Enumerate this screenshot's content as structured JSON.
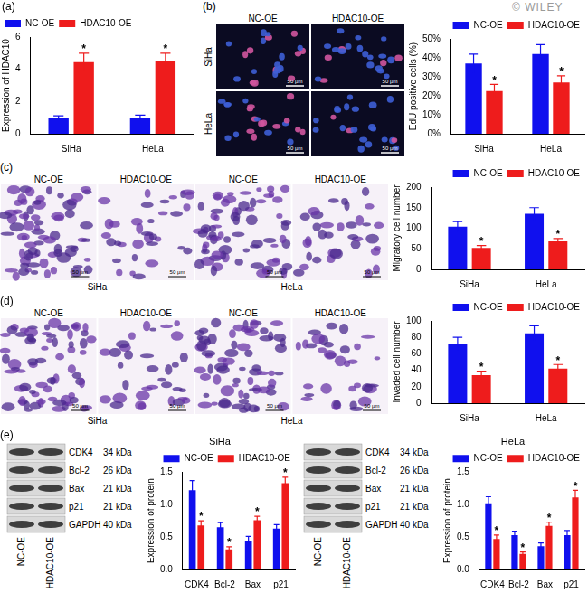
{
  "figure": {
    "watermark": "© WILEY"
  },
  "chart_data": [
    {
      "panel": "(a)",
      "type": "bar",
      "y_label": "Expression of HDAC10",
      "categories": [
        "SiHa",
        "HeLa"
      ],
      "series": [
        {
          "name": "NC-OE",
          "color": "#1010ee",
          "values": [
            1.0,
            1.0
          ],
          "errors": [
            0.12,
            0.16
          ]
        },
        {
          "name": "HDAC10-OE",
          "color": "#ee1c1c",
          "values": [
            4.45,
            4.5
          ],
          "errors": [
            0.55,
            0.5
          ],
          "significance": [
            "*",
            "*"
          ]
        }
      ],
      "ylim": [
        0,
        6
      ],
      "yticks": [
        0,
        2,
        4,
        6
      ],
      "grid": false,
      "legend": "top-left"
    },
    {
      "type": "bar",
      "y_label": "EdU positive cells (%)",
      "categories": [
        "SiHa",
        "HeLa"
      ],
      "series": [
        {
          "name": "NC-OE",
          "color": "#1010ee",
          "values": [
            37,
            42
          ],
          "errors": [
            5,
            5
          ]
        },
        {
          "name": "HDAC10-OE",
          "color": "#ee1c1c",
          "values": [
            22.5,
            27
          ],
          "errors": [
            3.5,
            3.5
          ],
          "significance": [
            "*",
            "*"
          ]
        }
      ],
      "ylim": [
        0,
        50
      ],
      "yticks": [
        {
          "value": 0,
          "label": "0%"
        },
        {
          "value": 10,
          "label": "10%"
        },
        {
          "value": 20,
          "label": "20%"
        },
        {
          "value": 30,
          "label": "30%"
        },
        {
          "value": 40,
          "label": "40%"
        },
        {
          "value": 50,
          "label": "50%"
        }
      ],
      "grid": false,
      "legend": "top-right"
    },
    {
      "type": "bar",
      "y_label": "Migratory cell number",
      "categories": [
        "SiHa",
        "HeLa"
      ],
      "series": [
        {
          "name": "NC-OE",
          "color": "#1010ee",
          "values": [
            104,
            135
          ],
          "errors": [
            12,
            15
          ]
        },
        {
          "name": "HDAC10-OE",
          "color": "#ee1c1c",
          "values": [
            52,
            68
          ],
          "errors": [
            6,
            7
          ],
          "significance": [
            "*",
            "*"
          ]
        }
      ],
      "ylim": [
        0,
        200
      ],
      "yticks": [
        0,
        50,
        100,
        150,
        200
      ],
      "grid": false,
      "legend": "top-right"
    },
    {
      "type": "bar",
      "y_label": "Invaded cell number",
      "categories": [
        "SiHa",
        "HeLa"
      ],
      "series": [
        {
          "name": "NC-OE",
          "color": "#1010ee",
          "values": [
            72,
            85
          ],
          "errors": [
            8,
            9
          ]
        },
        {
          "name": "HDAC10-OE",
          "color": "#ee1c1c",
          "values": [
            34,
            42
          ],
          "errors": [
            5,
            5
          ],
          "significance": [
            "*",
            "*"
          ]
        }
      ],
      "ylim": [
        0,
        100
      ],
      "yticks": [
        0,
        20,
        40,
        60,
        80,
        100
      ],
      "grid": false,
      "legend": "top-right"
    },
    {
      "type": "bar",
      "title": "SiHa",
      "y_label": "Expression of protein",
      "categories": [
        "CDK4",
        "Bcl-2",
        "Bax",
        "p21"
      ],
      "series": [
        {
          "name": "NC-OE",
          "color": "#1010ee",
          "values": [
            1.22,
            0.65,
            0.43,
            0.63
          ],
          "errors": [
            0.15,
            0.07,
            0.08,
            0.06
          ]
        },
        {
          "name": "HDAC10-OE",
          "color": "#ee1c1c",
          "values": [
            0.68,
            0.31,
            0.76,
            1.33
          ],
          "errors": [
            0.07,
            0.04,
            0.06,
            0.09
          ],
          "significance": [
            "*",
            "*",
            "*",
            "*"
          ]
        }
      ],
      "ylim": [
        0,
        1.5
      ],
      "yticks": [
        {
          "value": 0,
          "label": "0.0"
        },
        {
          "value": 0.5,
          "label": "0.5"
        },
        {
          "value": 1,
          "label": "1.0"
        },
        {
          "value": 1.5,
          "label": "1.5"
        }
      ],
      "grid": false,
      "legend": "top-right"
    },
    {
      "type": "bar",
      "title": "HeLa",
      "y_label": "Expression of protein",
      "categories": [
        "CDK4",
        "Bcl-2",
        "Bax",
        "p21"
      ],
      "series": [
        {
          "name": "NC-OE",
          "color": "#1010ee",
          "values": [
            1.02,
            0.53,
            0.36,
            0.53
          ],
          "errors": [
            0.1,
            0.06,
            0.05,
            0.07
          ]
        },
        {
          "name": "HDAC10-OE",
          "color": "#ee1c1c",
          "values": [
            0.47,
            0.24,
            0.67,
            1.11
          ],
          "errors": [
            0.06,
            0.03,
            0.06,
            0.11
          ],
          "significance": [
            "*",
            "*",
            "*",
            "*"
          ]
        }
      ],
      "ylim": [
        0,
        1.5
      ],
      "yticks": [
        {
          "value": 0,
          "label": "0.0"
        },
        {
          "value": 0.5,
          "label": "0.5"
        },
        {
          "value": 1,
          "label": "1.0"
        },
        {
          "value": 1.5,
          "label": "1.5"
        }
      ],
      "grid": false,
      "legend": "top-right"
    }
  ],
  "image_panels": [
    {
      "panel": "(b)",
      "columns": [
        "NC-OE",
        "HDAC10-OE"
      ],
      "rows": [
        "SiHa",
        "HeLa"
      ],
      "scale_bar": "50 μm"
    },
    {
      "panel": "(c)",
      "columns": [
        "NC-OE",
        "HDAC10-OE",
        "NC-OE",
        "HDAC10-OE"
      ],
      "groups": [
        "SiHa",
        "HeLa"
      ],
      "scale_bar": "50 μm"
    },
    {
      "panel": "(d)",
      "columns": [
        "NC-OE",
        "HDAC10-OE",
        "NC-OE",
        "HDAC10-OE"
      ],
      "groups": [
        "SiHa",
        "HeLa"
      ],
      "scale_bar": "50 μm"
    }
  ],
  "blots": [
    {
      "panel": "(e)",
      "proteins": [
        {
          "name": "CDK4",
          "size": "34 kDa"
        },
        {
          "name": "Bcl-2",
          "size": "26 kDa"
        },
        {
          "name": "Bax",
          "size": "21 kDa"
        },
        {
          "name": "p21",
          "size": "21 kDa"
        },
        {
          "name": "GAPDH",
          "size": "40 kDa"
        }
      ],
      "lanes": [
        "NC-OE",
        "HDAC10-OE"
      ]
    },
    {
      "proteins": [
        {
          "name": "CDK4",
          "size": "34 kDa"
        },
        {
          "name": "Bcl-2",
          "size": "26 kDa"
        },
        {
          "name": "Bax",
          "size": "21 kDa"
        },
        {
          "name": "p21",
          "size": "21 kDa"
        },
        {
          "name": "GAPDH",
          "size": "40 kDa"
        }
      ],
      "lanes": [
        "NC-OE",
        "HDAC10-OE"
      ]
    }
  ]
}
